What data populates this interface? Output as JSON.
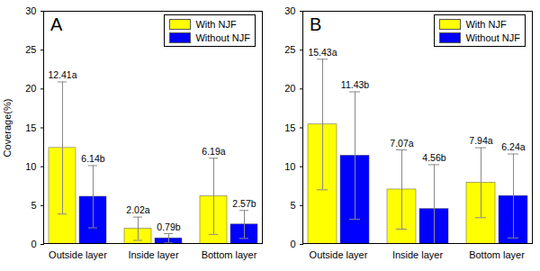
{
  "chart_data": [
    {
      "type": "bar",
      "title": "A",
      "y_label": "Coverage(%)",
      "categories": [
        "Outside layer",
        "Inside layer",
        "Bottom layer"
      ],
      "series": [
        {
          "name": "With NJF",
          "color": "#ffff00",
          "values": [
            12.41,
            2.02,
            6.19
          ],
          "value_labels": [
            "12.41a",
            "2.02a",
            "6.19a"
          ],
          "errors": [
            8.5,
            1.5,
            4.9
          ]
        },
        {
          "name": "Without NJF",
          "color": "#0000ff",
          "values": [
            6.14,
            0.79,
            2.57
          ],
          "value_labels": [
            "6.14b",
            "0.79b",
            "2.57b"
          ],
          "errors": [
            4.0,
            0.6,
            1.8
          ]
        }
      ],
      "ylim": [
        0,
        30
      ],
      "yticks": [
        0,
        5,
        10,
        15,
        20,
        25,
        30
      ],
      "legend": "upper right",
      "data_labels": true
    },
    {
      "type": "bar",
      "title": "B",
      "categories": [
        "Outside layer",
        "Inside layer",
        "Bottom layer"
      ],
      "series": [
        {
          "name": "With NJF",
          "color": "#ffff00",
          "values": [
            15.43,
            7.07,
            7.94
          ],
          "value_labels": [
            "15.43a",
            "7.07a",
            "7.94a"
          ],
          "errors": [
            8.4,
            5.1,
            4.5
          ]
        },
        {
          "name": "Without NJF",
          "color": "#0000ff",
          "values": [
            11.43,
            4.56,
            6.24
          ],
          "value_labels": [
            "11.43b",
            "4.56b",
            "6.24a"
          ],
          "errors": [
            8.2,
            5.7,
            5.4
          ]
        }
      ],
      "ylim": [
        0,
        30
      ],
      "yticks": [
        0,
        5,
        10,
        15,
        20,
        25,
        30
      ],
      "legend": "upper right",
      "data_labels": true
    }
  ]
}
